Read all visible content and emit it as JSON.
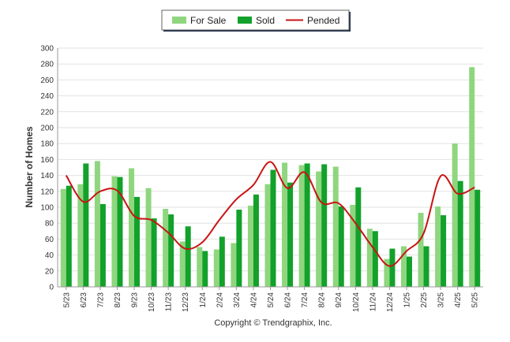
{
  "chart_data": {
    "type": "bar",
    "ylabel": "Number of Homes",
    "xlabel": "",
    "ylim": [
      0,
      300
    ],
    "yticks": [
      0,
      20,
      40,
      60,
      80,
      100,
      120,
      140,
      160,
      180,
      200,
      220,
      240,
      260,
      280,
      300
    ],
    "grid": true,
    "legend_position": "top-center",
    "categories": [
      "5/23",
      "6/23",
      "7/23",
      "8/23",
      "9/23",
      "10/23",
      "11/23",
      "12/23",
      "1/24",
      "2/24",
      "3/24",
      "4/24",
      "5/24",
      "6/24",
      "7/24",
      "8/24",
      "9/24",
      "10/24",
      "11/24",
      "12/24",
      "1/25",
      "2/25",
      "3/25",
      "4/25",
      "5/25"
    ],
    "series": [
      {
        "name": "For Sale",
        "type": "bar",
        "color": "#8fd67f",
        "values": [
          123,
          129,
          158,
          139,
          149,
          124,
          98,
          57,
          50,
          47,
          55,
          102,
          129,
          156,
          153,
          145,
          151,
          103,
          73,
          35,
          51,
          93,
          101,
          180,
          276
        ]
      },
      {
        "name": "Sold",
        "type": "bar",
        "color": "#12a12a",
        "values": [
          127,
          155,
          104,
          138,
          113,
          86,
          91,
          76,
          45,
          63,
          97,
          116,
          147,
          131,
          155,
          154,
          101,
          125,
          70,
          48,
          38,
          51,
          90,
          133,
          122
        ]
      },
      {
        "name": "Pended",
        "type": "line",
        "color": "#c81414",
        "values": [
          140,
          107,
          120,
          121,
          89,
          84,
          68,
          48,
          56,
          84,
          110,
          128,
          157,
          124,
          144,
          106,
          105,
          80,
          50,
          26,
          45,
          67,
          139,
          117,
          125
        ]
      }
    ],
    "footer": "Copyright © Trendgraphix, Inc."
  }
}
